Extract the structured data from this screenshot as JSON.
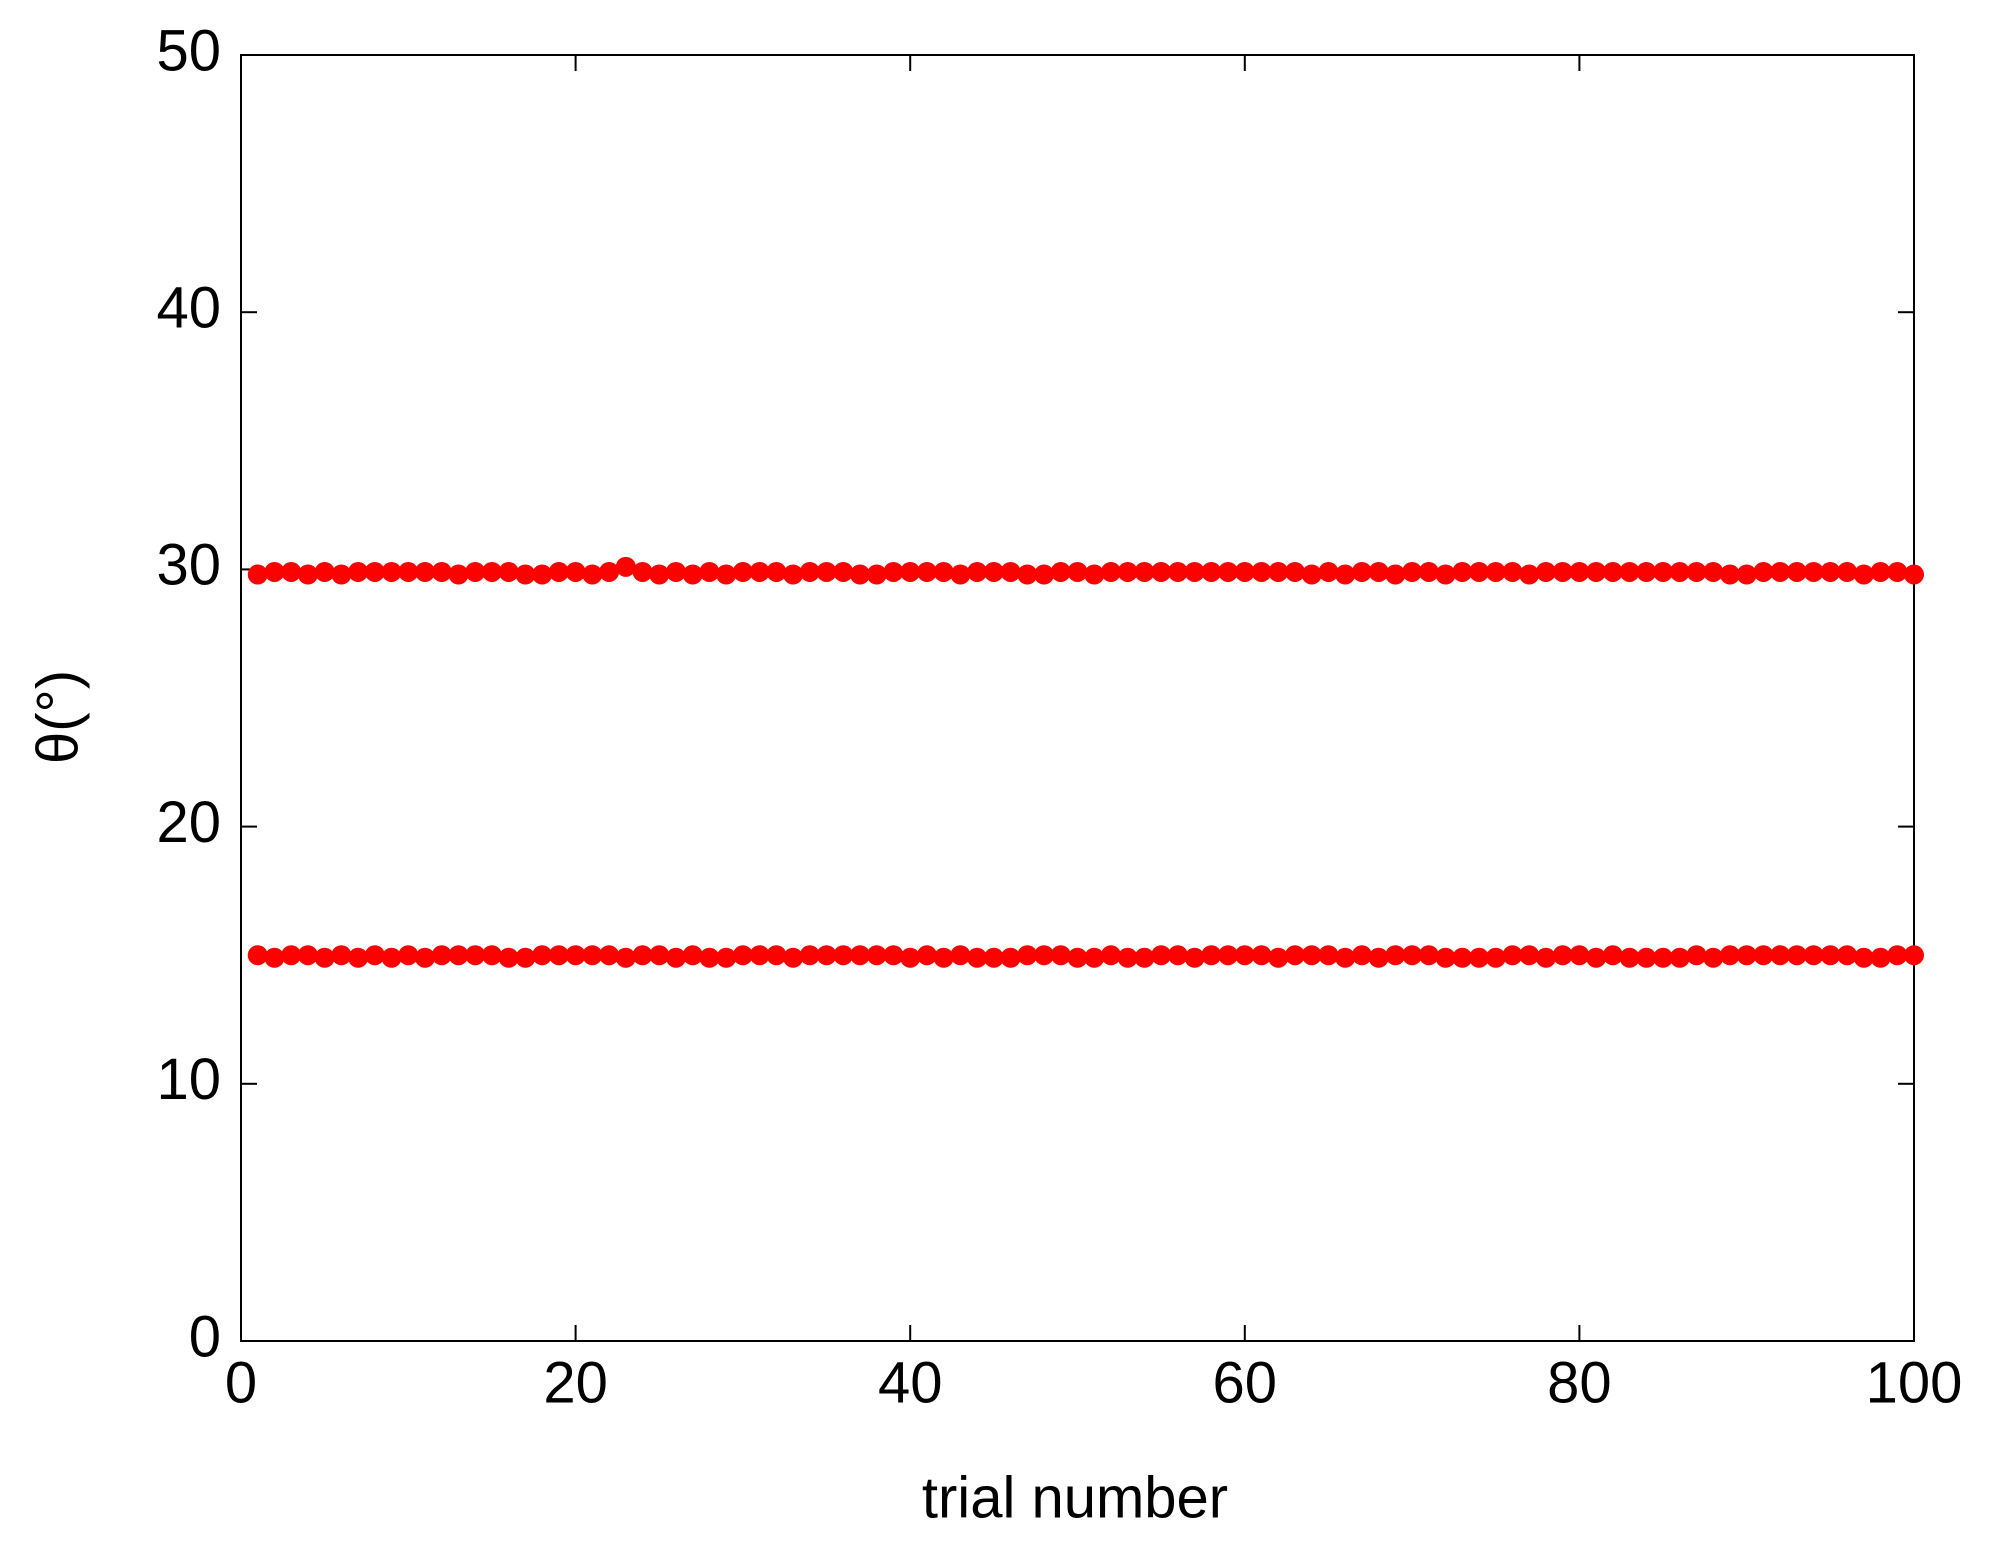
{
  "chart_data": {
    "type": "scatter",
    "x_label": "trial number",
    "y_label": "θ(°)",
    "x": [
      1,
      2,
      3,
      4,
      5,
      6,
      7,
      8,
      9,
      10,
      11,
      12,
      13,
      14,
      15,
      16,
      17,
      18,
      19,
      20,
      21,
      22,
      23,
      24,
      25,
      26,
      27,
      28,
      29,
      30,
      31,
      32,
      33,
      34,
      35,
      36,
      37,
      38,
      39,
      40,
      41,
      42,
      43,
      44,
      45,
      46,
      47,
      48,
      49,
      50,
      51,
      52,
      53,
      54,
      55,
      56,
      57,
      58,
      59,
      60,
      61,
      62,
      63,
      64,
      65,
      66,
      67,
      68,
      69,
      70,
      71,
      72,
      73,
      74,
      75,
      76,
      77,
      78,
      79,
      80,
      81,
      82,
      83,
      84,
      85,
      86,
      87,
      88,
      89,
      90,
      91,
      92,
      93,
      94,
      95,
      96,
      97,
      98,
      99,
      100
    ],
    "series": [
      {
        "color": "#ff0000",
        "values": [
          29.8,
          29.9,
          29.9,
          29.8,
          29.9,
          29.8,
          29.9,
          29.9,
          29.9,
          29.9,
          29.9,
          29.9,
          29.8,
          29.9,
          29.9,
          29.9,
          29.8,
          29.8,
          29.9,
          29.9,
          29.8,
          29.9,
          30.1,
          29.9,
          29.8,
          29.9,
          29.8,
          29.9,
          29.8,
          29.9,
          29.9,
          29.9,
          29.8,
          29.9,
          29.9,
          29.9,
          29.8,
          29.8,
          29.9,
          29.9,
          29.9,
          29.9,
          29.8,
          29.9,
          29.9,
          29.9,
          29.8,
          29.8,
          29.9,
          29.9,
          29.8,
          29.9,
          29.9,
          29.9,
          29.9,
          29.9,
          29.9,
          29.9,
          29.9,
          29.9,
          29.9,
          29.9,
          29.9,
          29.8,
          29.9,
          29.8,
          29.9,
          29.9,
          29.8,
          29.9,
          29.9,
          29.8,
          29.9,
          29.9,
          29.9,
          29.9,
          29.8,
          29.9,
          29.9,
          29.9,
          29.9,
          29.9,
          29.9,
          29.9,
          29.9,
          29.9,
          29.9,
          29.9,
          29.8,
          29.8,
          29.9,
          29.9,
          29.9,
          29.9,
          29.9,
          29.9,
          29.8,
          29.9,
          29.9,
          29.8
        ]
      },
      {
        "color": "#ff0000",
        "values": [
          15.0,
          14.9,
          15.0,
          15.0,
          14.9,
          15.0,
          14.9,
          15.0,
          14.9,
          15.0,
          14.9,
          15.0,
          15.0,
          15.0,
          15.0,
          14.9,
          14.9,
          15.0,
          15.0,
          15.0,
          15.0,
          15.0,
          14.9,
          15.0,
          15.0,
          14.9,
          15.0,
          14.9,
          14.9,
          15.0,
          15.0,
          15.0,
          14.9,
          15.0,
          15.0,
          15.0,
          15.0,
          15.0,
          15.0,
          14.9,
          15.0,
          14.9,
          15.0,
          14.9,
          14.9,
          14.9,
          15.0,
          15.0,
          15.0,
          14.9,
          14.9,
          15.0,
          14.9,
          14.9,
          15.0,
          15.0,
          14.9,
          15.0,
          15.0,
          15.0,
          15.0,
          14.9,
          15.0,
          15.0,
          15.0,
          14.9,
          15.0,
          14.9,
          15.0,
          15.0,
          15.0,
          14.9,
          14.9,
          14.9,
          14.9,
          15.0,
          15.0,
          14.9,
          15.0,
          15.0,
          14.9,
          15.0,
          14.9,
          14.9,
          14.9,
          14.9,
          15.0,
          14.9,
          15.0,
          15.0,
          15.0,
          15.0,
          15.0,
          15.0,
          15.0,
          15.0,
          14.9,
          14.9,
          15.0,
          15.0
        ]
      }
    ],
    "xlim": [
      0,
      100
    ],
    "xticks": [
      0,
      20,
      40,
      60,
      80,
      100
    ],
    "ylim": [
      0,
      50
    ],
    "yticks": [
      0,
      10,
      20,
      30,
      40,
      50
    ],
    "grid": false
  }
}
